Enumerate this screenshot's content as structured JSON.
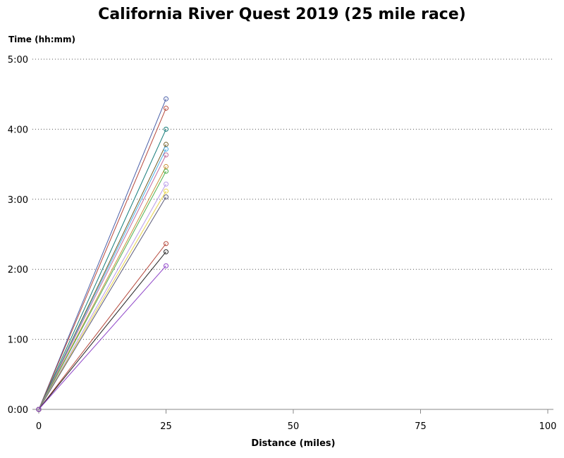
{
  "chart_data": {
    "type": "line",
    "title": "California River Quest 2019 (25 mile race)",
    "xlabel": "Distance (miles)",
    "ylabel": "Time (hh:mm)",
    "xlim": [
      0,
      100
    ],
    "ylim": [
      0,
      300
    ],
    "x_ticks": [
      0,
      25,
      50,
      75,
      100
    ],
    "x_tick_labels": [
      "0",
      "25",
      "50",
      "75",
      "100"
    ],
    "y_ticks": [
      0,
      60,
      120,
      180,
      240,
      300
    ],
    "y_tick_labels": [
      "0:00",
      "1:00",
      "2:00",
      "3:00",
      "4:00",
      "5:00"
    ],
    "grid": "horizontal-dotted",
    "series": [
      {
        "color": "#4a5fa8",
        "x": [
          0,
          25
        ],
        "y": [
          0,
          266
        ]
      },
      {
        "color": "#b5473a",
        "x": [
          0,
          25
        ],
        "y": [
          0,
          258
        ]
      },
      {
        "color": "#127a78",
        "x": [
          0,
          25
        ],
        "y": [
          0,
          240
        ]
      },
      {
        "color": "#6b5a22",
        "x": [
          0,
          25
        ],
        "y": [
          0,
          227
        ]
      },
      {
        "color": "#4aaee8",
        "x": [
          0,
          25
        ],
        "y": [
          0,
          223
        ]
      },
      {
        "color": "#c06a9c",
        "x": [
          0,
          25
        ],
        "y": [
          0,
          218
        ]
      },
      {
        "color": "#c9913a",
        "x": [
          0,
          25
        ],
        "y": [
          0,
          208
        ]
      },
      {
        "color": "#4cb04c",
        "x": [
          0,
          25
        ],
        "y": [
          0,
          204
        ]
      },
      {
        "color": "#b89be8",
        "x": [
          0,
          25
        ],
        "y": [
          0,
          193
        ]
      },
      {
        "color": "#e8d44a",
        "x": [
          0,
          25
        ],
        "y": [
          0,
          187
        ]
      },
      {
        "color": "#5a5a7a",
        "x": [
          0,
          25
        ],
        "y": [
          0,
          182
        ]
      },
      {
        "color": "#b5473a",
        "x": [
          0,
          25
        ],
        "y": [
          0,
          142
        ]
      },
      {
        "color": "#222222",
        "x": [
          0,
          25
        ],
        "y": [
          0,
          135
        ]
      },
      {
        "color": "#8e44c8",
        "x": [
          0,
          25
        ],
        "y": [
          0,
          123
        ]
      }
    ]
  }
}
